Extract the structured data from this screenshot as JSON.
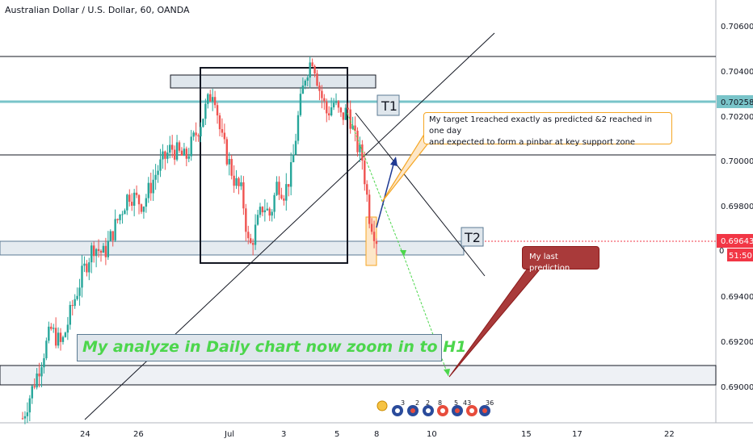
{
  "symbol_title": "Australian Dollar / U.S. Dollar, 60, OANDA",
  "price_scale": {
    "ticks": [
      "0.70600",
      "0.70400",
      "0.70200",
      "0.70000",
      "0.69800",
      "0.69400",
      "0.69200",
      "0.69000"
    ],
    "current_price_label": "0.69643",
    "countdown_label": "51:50",
    "level_label": "0.70258",
    "partial_label": "0"
  },
  "time_axis": {
    "ticks": [
      "24",
      "26",
      "Jul",
      "3",
      "5",
      "8",
      "10",
      "15",
      "17",
      "22"
    ]
  },
  "annotations": {
    "t1": "T1",
    "t2": "T2",
    "target_callout_line1": "My target 1reached exactly as predicted &2 reached in one day",
    "target_callout_line2": "and expected to form a pinbar at key support zone",
    "prediction_callout": "My last prediction",
    "banner": "My analyze in Daily chart now zoom in to H1"
  },
  "event_markers": [
    "3",
    "2",
    "2",
    "8",
    "5",
    "43",
    "36"
  ],
  "colors": {
    "up": "#26a69a",
    "down": "#ef5350",
    "horizontal_level": "#79c4c9",
    "current_price": "#f23645",
    "callout_border": "#f5a623",
    "projection_green": "#4cd64c",
    "projection_blue": "#1f3a93",
    "prediction_fill": "#a93a3a"
  },
  "chart_data": {
    "type": "candlestick",
    "title": "Australian Dollar / U.S. Dollar, 60, OANDA",
    "x_axis_labels": [
      "24",
      "26",
      "Jul",
      "3",
      "5",
      "8",
      "10",
      "15",
      "17",
      "22"
    ],
    "ylim": [
      0.6884,
      0.707
    ],
    "y_ticks": [
      0.706,
      0.704,
      0.702,
      0.7,
      0.698,
      0.694,
      0.692,
      0.69
    ],
    "current_price": 0.69643,
    "levels": [
      0.70258
    ],
    "close_path": [
      {
        "t": 0.0,
        "v": 0.6886
      },
      {
        "t": 0.04,
        "v": 0.6905
      },
      {
        "t": 0.08,
        "v": 0.6925
      },
      {
        "t": 0.11,
        "v": 0.6918
      },
      {
        "t": 0.14,
        "v": 0.6935
      },
      {
        "t": 0.17,
        "v": 0.695
      },
      {
        "t": 0.2,
        "v": 0.6962
      },
      {
        "t": 0.23,
        "v": 0.6958
      },
      {
        "t": 0.26,
        "v": 0.697
      },
      {
        "t": 0.3,
        "v": 0.6985
      },
      {
        "t": 0.34,
        "v": 0.698
      },
      {
        "t": 0.38,
        "v": 0.6995
      },
      {
        "t": 0.42,
        "v": 0.7005
      },
      {
        "t": 0.46,
        "v": 0.7
      },
      {
        "t": 0.5,
        "v": 0.7015
      },
      {
        "t": 0.54,
        "v": 0.7032
      },
      {
        "t": 0.56,
        "v": 0.701
      },
      {
        "t": 0.58,
        "v": 0.7
      },
      {
        "t": 0.6,
        "v": 0.699
      },
      {
        "t": 0.62,
        "v": 0.6985
      },
      {
        "t": 0.64,
        "v": 0.696
      },
      {
        "t": 0.66,
        "v": 0.697
      },
      {
        "t": 0.68,
        "v": 0.698
      },
      {
        "t": 0.7,
        "v": 0.6975
      },
      {
        "t": 0.72,
        "v": 0.699
      },
      {
        "t": 0.74,
        "v": 0.6985
      },
      {
        "t": 0.76,
        "v": 0.6995
      },
      {
        "t": 0.78,
        "v": 0.702
      },
      {
        "t": 0.8,
        "v": 0.7038
      },
      {
        "t": 0.82,
        "v": 0.7045
      },
      {
        "t": 0.84,
        "v": 0.703
      },
      {
        "t": 0.86,
        "v": 0.702
      },
      {
        "t": 0.88,
        "v": 0.7025
      },
      {
        "t": 0.9,
        "v": 0.7018
      },
      {
        "t": 0.92,
        "v": 0.7022
      },
      {
        "t": 0.94,
        "v": 0.7008
      },
      {
        "t": 0.96,
        "v": 0.7
      },
      {
        "t": 0.98,
        "v": 0.6975
      },
      {
        "t": 1.0,
        "v": 0.6965
      }
    ]
  }
}
